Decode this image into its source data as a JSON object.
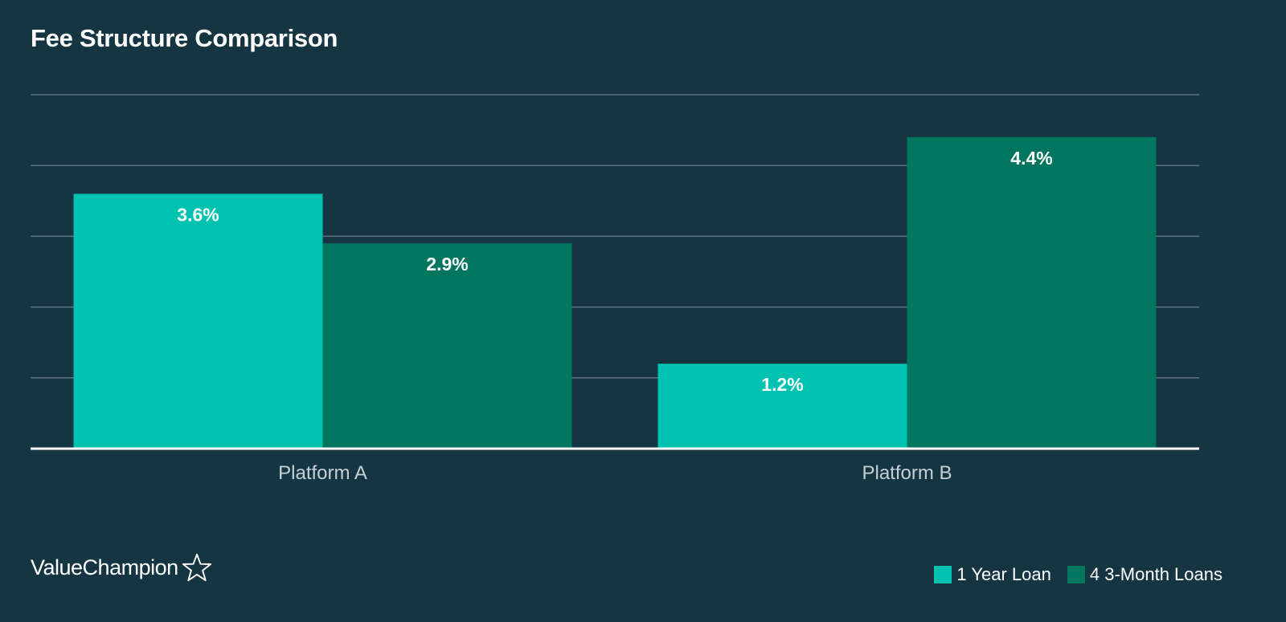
{
  "colors": {
    "background": "#153543",
    "gridline": "#5b7480",
    "baseline": "#ffffff",
    "series_1": "#00c2b0",
    "series_2": "#00765f",
    "category_label": "#c7d1d5",
    "text": "#ffffff"
  },
  "chart_data": {
    "type": "bar",
    "title": "Fee Structure Comparison",
    "xlabel": "",
    "ylabel": "",
    "categories": [
      "Platform A",
      "Platform B"
    ],
    "series": [
      {
        "name": "1 Year Loan",
        "values": [
          3.6,
          1.2
        ],
        "labels": [
          "3.6%",
          "1.2%"
        ]
      },
      {
        "name": "4 3-Month Loans",
        "values": [
          2.9,
          4.4
        ],
        "labels": [
          "2.9%",
          "4.4%"
        ]
      }
    ],
    "ylim": [
      0,
      5
    ],
    "gridlines": [
      1,
      2,
      3,
      4,
      5
    ],
    "grid": true,
    "legend_position": "bottom-right"
  },
  "brand": {
    "name": "ValueChampion",
    "icon": "star-outline-icon"
  }
}
